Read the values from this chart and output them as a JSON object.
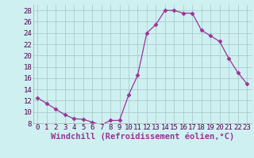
{
  "x": [
    0,
    1,
    2,
    3,
    4,
    5,
    6,
    7,
    8,
    9,
    10,
    11,
    12,
    13,
    14,
    15,
    16,
    17,
    18,
    19,
    20,
    21,
    22,
    23
  ],
  "y": [
    12.5,
    11.5,
    10.5,
    9.5,
    8.8,
    8.7,
    8.2,
    7.7,
    8.5,
    8.5,
    13.0,
    16.5,
    24.0,
    25.5,
    28.0,
    28.0,
    27.5,
    27.5,
    24.5,
    23.5,
    22.5,
    19.5,
    17.0,
    15.0
  ],
  "line_color": "#993399",
  "marker": "D",
  "marker_size": 2.5,
  "bg_color": "#cff0f0",
  "grid_color": "#aacccc",
  "xlabel": "Windchill (Refroidissement éolien,°C)",
  "xlabel_color": "#993399",
  "ylim": [
    8,
    29
  ],
  "xlim": [
    -0.5,
    23.5
  ],
  "yticks": [
    8,
    10,
    12,
    14,
    16,
    18,
    20,
    22,
    24,
    26,
    28
  ],
  "xtick_labels": [
    "0",
    "1",
    "2",
    "3",
    "4",
    "5",
    "6",
    "7",
    "8",
    "9",
    "10",
    "11",
    "12",
    "13",
    "14",
    "15",
    "16",
    "17",
    "18",
    "19",
    "20",
    "21",
    "22",
    "23"
  ],
  "tick_fontsize": 6.5,
  "xlabel_fontsize": 7.5
}
